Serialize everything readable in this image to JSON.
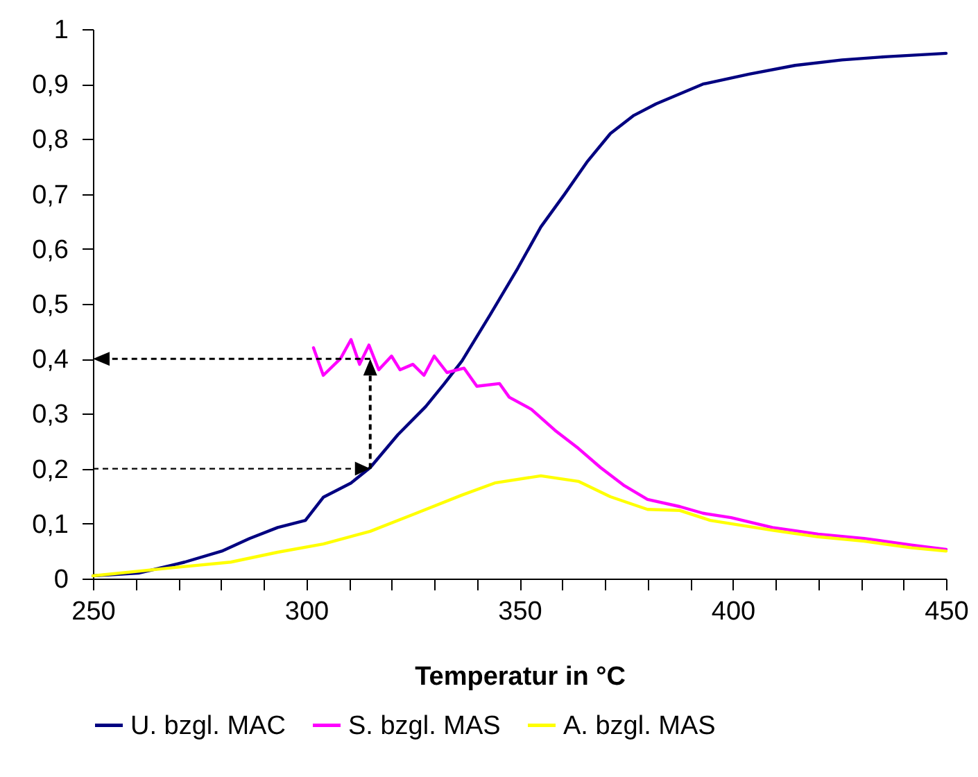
{
  "chart_data": {
    "type": "line",
    "xlabel": "Temperatur in °C",
    "xlim": [
      250,
      450
    ],
    "ylim": [
      0,
      1
    ],
    "xticks": [
      250,
      {
        "value": 260,
        "label": null
      },
      {
        "value": 270,
        "label": null
      },
      {
        "value": 280,
        "label": null
      },
      {
        "value": 290,
        "label": null
      },
      300,
      {
        "value": 310,
        "label": null
      },
      {
        "value": 320,
        "label": null
      },
      {
        "value": 330,
        "label": null
      },
      {
        "value": 340,
        "label": null
      },
      350,
      {
        "value": 360,
        "label": null
      },
      {
        "value": 370,
        "label": null
      },
      {
        "value": 380,
        "label": null
      },
      {
        "value": 390,
        "label": null
      },
      400,
      {
        "value": 410,
        "label": null
      },
      {
        "value": 420,
        "label": null
      },
      {
        "value": 430,
        "label": null
      },
      {
        "value": 440,
        "label": null
      },
      450
    ],
    "yticks": [
      0,
      {
        "value": 0.1,
        "label": "0,1"
      },
      {
        "value": 0.2,
        "label": "0,2"
      },
      {
        "value": 0.3,
        "label": "0,3"
      },
      {
        "value": 0.4,
        "label": "0,4"
      },
      {
        "value": 0.5,
        "label": "0,5"
      },
      {
        "value": 0.6,
        "label": "0,6"
      },
      {
        "value": 0.7,
        "label": "0,7"
      },
      {
        "value": 0.8,
        "label": "0,8"
      },
      {
        "value": 0.9,
        "label": "0,9"
      },
      1
    ],
    "grid": false,
    "legend": "bottom",
    "marker": "none",
    "line_style": "solid",
    "series": [
      {
        "name": "U. bzgl. MAC",
        "color": "#000080",
        "x": [
          250,
          260.7,
          271.5,
          280.2,
          286.7,
          293.3,
          299.8,
          304,
          310.5,
          315,
          321.5,
          328,
          332.3,
          336.5,
          343.1,
          349.6,
          355,
          360.6,
          365.8,
          371.3,
          376.8,
          382,
          393,
          403.8,
          414.6,
          425.6,
          436.3,
          450
        ],
        "values": [
          0.005,
          0.01,
          0.03,
          0.05,
          0.073,
          0.093,
          0.106,
          0.148,
          0.174,
          0.202,
          0.262,
          0.313,
          0.354,
          0.396,
          0.48,
          0.565,
          0.64,
          0.7,
          0.758,
          0.81,
          0.843,
          0.864,
          0.9,
          0.918,
          0.934,
          0.944,
          0.95,
          0.956
        ]
      },
      {
        "name": "S. bzgl. MAS",
        "color": "#ff00ff",
        "x": [
          301.7,
          304,
          308,
          310.5,
          312.5,
          314.7,
          317,
          320,
          322,
          325,
          327.6,
          330,
          333,
          337,
          340,
          345.3,
          347.6,
          352.8,
          358.3,
          363.8,
          369,
          374.6,
          380,
          387.6,
          393,
          399.6,
          409.3,
          420,
          430.8,
          441.9,
          450
        ],
        "values": [
          0.42,
          0.37,
          0.4,
          0.435,
          0.39,
          0.425,
          0.38,
          0.405,
          0.38,
          0.39,
          0.37,
          0.405,
          0.375,
          0.383,
          0.35,
          0.355,
          0.33,
          0.308,
          0.27,
          0.237,
          0.202,
          0.169,
          0.144,
          0.131,
          0.119,
          0.111,
          0.093,
          0.081,
          0.073,
          0.061,
          0.053
        ]
      },
      {
        "name": "A. bzgl. MAS",
        "color": "#ffff00",
        "x": [
          250,
          271.5,
          282.3,
          293.3,
          304,
          315,
          325.8,
          336.5,
          344.2,
          355,
          363.8,
          371.3,
          380,
          387.6,
          394.7,
          409.3,
          420,
          430.8,
          441.9,
          450
        ],
        "values": [
          0.005,
          0.022,
          0.03,
          0.048,
          0.063,
          0.086,
          0.119,
          0.152,
          0.174,
          0.187,
          0.177,
          0.149,
          0.126,
          0.124,
          0.106,
          0.088,
          0.076,
          0.068,
          0.056,
          0.05
        ]
      }
    ]
  }
}
